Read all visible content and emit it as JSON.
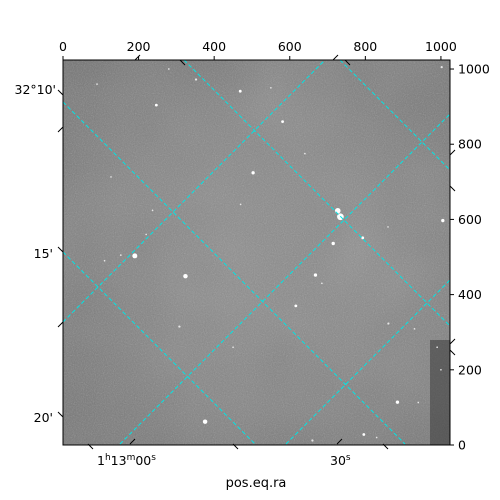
{
  "chart_data": {
    "type": "image",
    "xlabel": "pos.eq.ra",
    "pixel_axes": {
      "x_range": [
        0,
        1024
      ],
      "y_range": [
        0,
        1024
      ],
      "x_ticks": [
        0,
        200,
        400,
        600,
        800,
        1000
      ],
      "y_ticks": [
        0,
        200,
        400,
        600,
        800,
        1000
      ]
    },
    "world_axes": {
      "ra_ticks": [
        {
          "label": "1h13m00s",
          "h": "1",
          "m": "13",
          "s": "00"
        },
        {
          "label": "30s",
          "s": "30"
        }
      ],
      "dec_ticks": [
        {
          "label": "32°10'"
        },
        {
          "label": "15'"
        },
        {
          "label": "20'"
        }
      ]
    },
    "grid": true,
    "grid_color": "#00e5e5",
    "image_colormap": "gray",
    "stars": [
      {
        "x": 727,
        "y": 623,
        "r": 10
      },
      {
        "x": 734,
        "y": 607,
        "r": 12
      },
      {
        "x": 190,
        "y": 503,
        "r": 9
      },
      {
        "x": 324,
        "y": 449,
        "r": 8
      },
      {
        "x": 668,
        "y": 452,
        "r": 6
      },
      {
        "x": 715,
        "y": 536,
        "r": 6
      },
      {
        "x": 793,
        "y": 551,
        "r": 5
      },
      {
        "x": 1005,
        "y": 597,
        "r": 6
      },
      {
        "x": 503,
        "y": 724,
        "r": 6
      },
      {
        "x": 581,
        "y": 860,
        "r": 5
      },
      {
        "x": 247,
        "y": 904,
        "r": 5
      },
      {
        "x": 469,
        "y": 941,
        "r": 5
      },
      {
        "x": 352,
        "y": 972,
        "r": 4
      },
      {
        "x": 616,
        "y": 370,
        "r": 5
      },
      {
        "x": 861,
        "y": 323,
        "r": 4
      },
      {
        "x": 308,
        "y": 315,
        "r": 4
      },
      {
        "x": 885,
        "y": 114,
        "r": 6
      },
      {
        "x": 376,
        "y": 62,
        "r": 8
      },
      {
        "x": 796,
        "y": 28,
        "r": 5
      },
      {
        "x": 660,
        "y": 12,
        "r": 4
      },
      {
        "x": 1002,
        "y": 1005,
        "r": 4
      },
      {
        "x": 153,
        "y": 505,
        "r": 3
      },
      {
        "x": 110,
        "y": 490,
        "r": 3
      },
      {
        "x": 685,
        "y": 430,
        "r": 3
      },
      {
        "x": 930,
        "y": 309,
        "r": 3
      },
      {
        "x": 940,
        "y": 113,
        "r": 3
      },
      {
        "x": 1000,
        "y": 200,
        "r": 3
      },
      {
        "x": 470,
        "y": 640,
        "r": 3
      },
      {
        "x": 237,
        "y": 624,
        "r": 3
      },
      {
        "x": 127,
        "y": 713,
        "r": 3
      },
      {
        "x": 90,
        "y": 960,
        "r": 3
      },
      {
        "x": 550,
        "y": 950,
        "r": 3
      },
      {
        "x": 280,
        "y": 1000,
        "r": 3
      },
      {
        "x": 450,
        "y": 260,
        "r": 3
      },
      {
        "x": 640,
        "y": 775,
        "r": 3
      },
      {
        "x": 860,
        "y": 580,
        "r": 3
      },
      {
        "x": 220,
        "y": 560,
        "r": 3
      },
      {
        "x": 830,
        "y": 20,
        "r": 3
      },
      {
        "x": 990,
        "y": 260,
        "r": 3
      }
    ]
  }
}
